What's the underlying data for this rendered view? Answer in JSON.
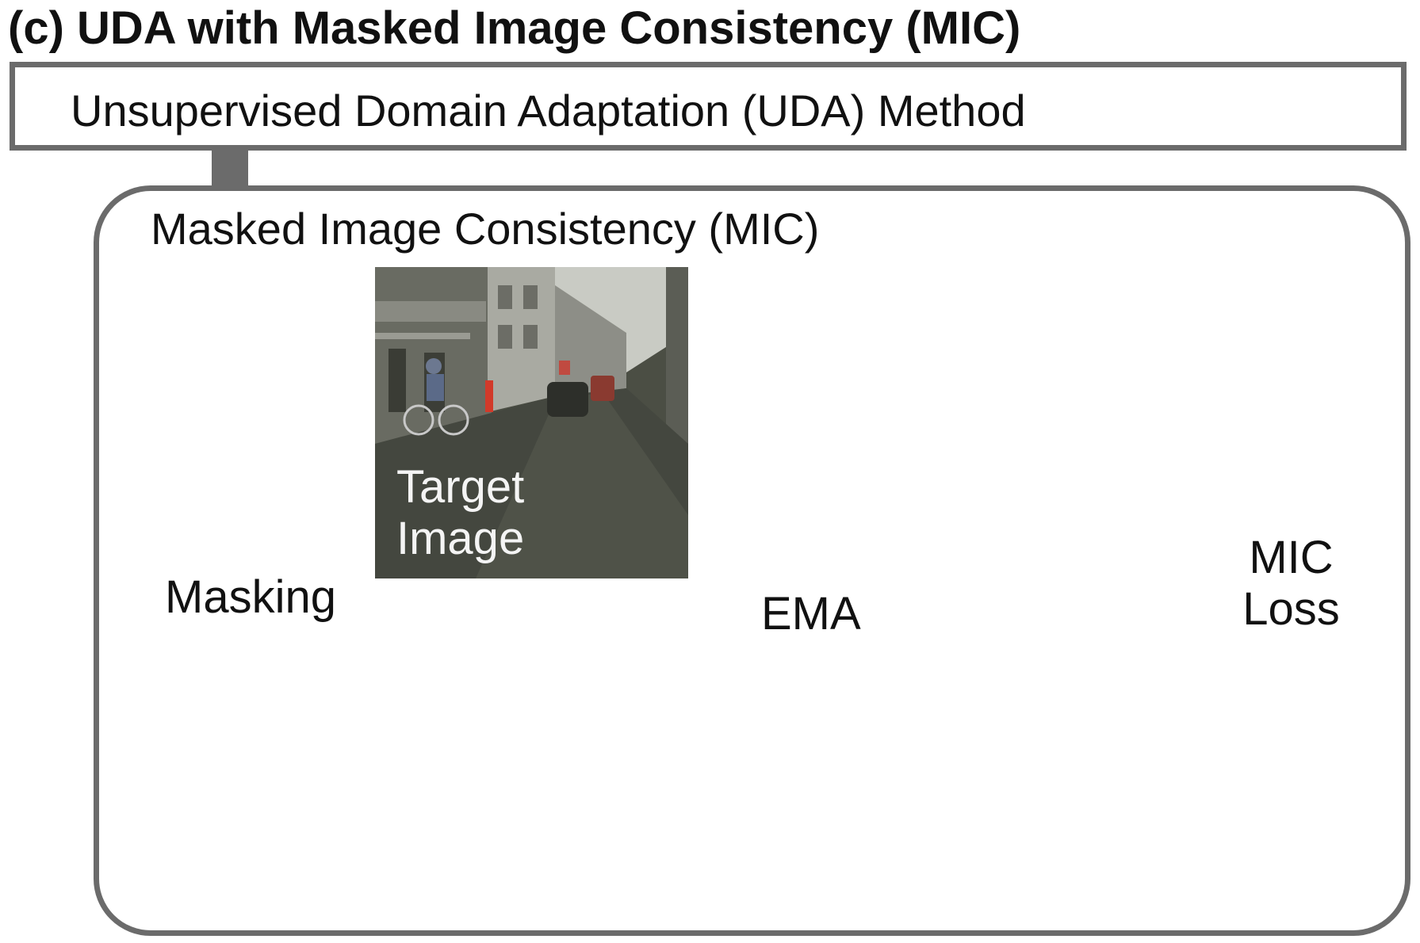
{
  "figure": {
    "title": "(c) UDA with Masked Image Consistency (MIC)",
    "uda_label": "Unsupervised Domain Adaptation (UDA) Method",
    "mic_label": "Masked Image Consistency (MIC)"
  },
  "nodes": {
    "target_image": {
      "line1": "Target",
      "line2": "Image"
    },
    "masking": "Masking",
    "ema": "EMA",
    "mic_loss": {
      "line1": "MIC",
      "line2": "Loss"
    }
  },
  "colors": {
    "frame": "#6b6b6b",
    "arrow_green": "#556b14",
    "arrow_purple": "#5e1150",
    "box_fill": "#dfc0cc",
    "box_border": "#5e1150",
    "mask_patch": "#7d776c",
    "seg_road": "#804080",
    "seg_building": "#464646",
    "seg_sky": "#4682b4",
    "seg_sidewalk": "#f423e8",
    "seg_person": "#ff0000",
    "seg_rider": "#8a1418",
    "seg_car": "#00008e",
    "seg_vegetation": "#98fb98"
  }
}
